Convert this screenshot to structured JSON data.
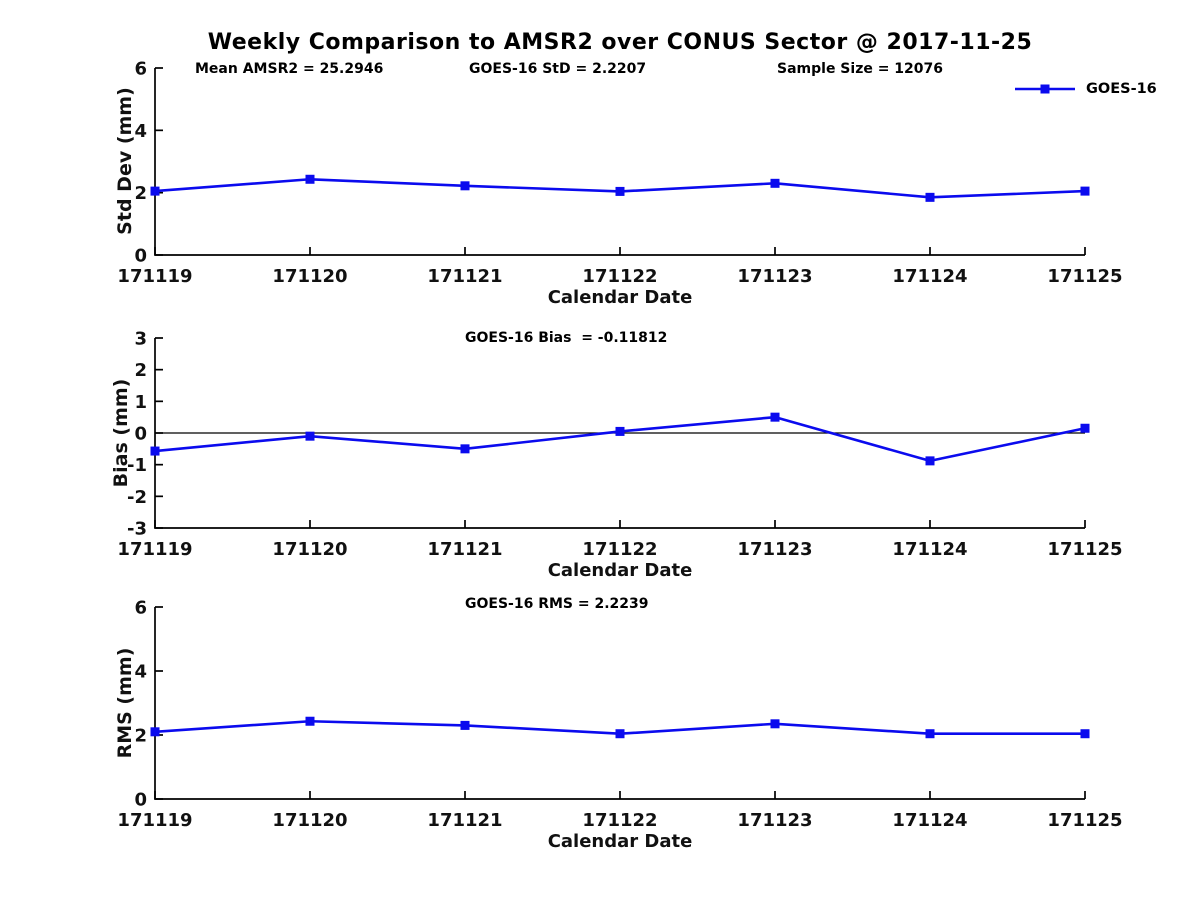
{
  "title": "Weekly Comparison to AMSR2 over CONUS Sector @ 2017-11-25",
  "legend": {
    "label": "GOES-16",
    "color": "#0b0bee",
    "position": "top-right"
  },
  "chart_data": [
    {
      "type": "line",
      "name": "std-dev-subplot",
      "categories": [
        "171119",
        "171120",
        "171121",
        "171122",
        "171123",
        "171124",
        "171125"
      ],
      "series": [
        {
          "name": "GOES-16",
          "values": [
            2.05,
            2.43,
            2.22,
            2.04,
            2.3,
            1.85,
            2.05
          ]
        }
      ],
      "ylabel": "Std Dev (mm)",
      "xlabel": "Calendar Date",
      "ylim": [
        0,
        6
      ],
      "yticks": [
        0,
        2,
        4,
        6
      ],
      "grid": false,
      "zero_line": false,
      "marker": "square",
      "color": "#0b0bee",
      "annotations": [
        "Mean AMSR2 = 25.2946",
        "GOES-16 StD = 2.2207",
        "Sample Size = 12076"
      ]
    },
    {
      "type": "line",
      "name": "bias-subplot",
      "categories": [
        "171119",
        "171120",
        "171121",
        "171122",
        "171123",
        "171124",
        "171125"
      ],
      "series": [
        {
          "name": "GOES-16",
          "values": [
            -0.57,
            -0.1,
            -0.5,
            0.05,
            0.5,
            -0.88,
            0.15
          ]
        }
      ],
      "ylabel": "Bias (mm)",
      "xlabel": "Calendar Date",
      "ylim": [
        -3,
        3
      ],
      "yticks": [
        -3,
        -2,
        -1,
        0,
        1,
        2,
        3
      ],
      "grid": false,
      "zero_line": true,
      "marker": "square",
      "color": "#0b0bee",
      "annotations": [
        "GOES-16 Bias  = -0.11812"
      ]
    },
    {
      "type": "line",
      "name": "rms-subplot",
      "categories": [
        "171119",
        "171120",
        "171121",
        "171122",
        "171123",
        "171124",
        "171125"
      ],
      "series": [
        {
          "name": "GOES-16",
          "values": [
            2.1,
            2.43,
            2.3,
            2.04,
            2.35,
            2.04,
            2.04
          ]
        }
      ],
      "ylabel": "RMS (mm)",
      "xlabel": "Calendar Date",
      "ylim": [
        0,
        6
      ],
      "yticks": [
        0,
        2,
        4,
        6
      ],
      "grid": false,
      "zero_line": false,
      "marker": "square",
      "color": "#0b0bee",
      "annotations": [
        "GOES-16 RMS = 2.2239"
      ]
    }
  ]
}
